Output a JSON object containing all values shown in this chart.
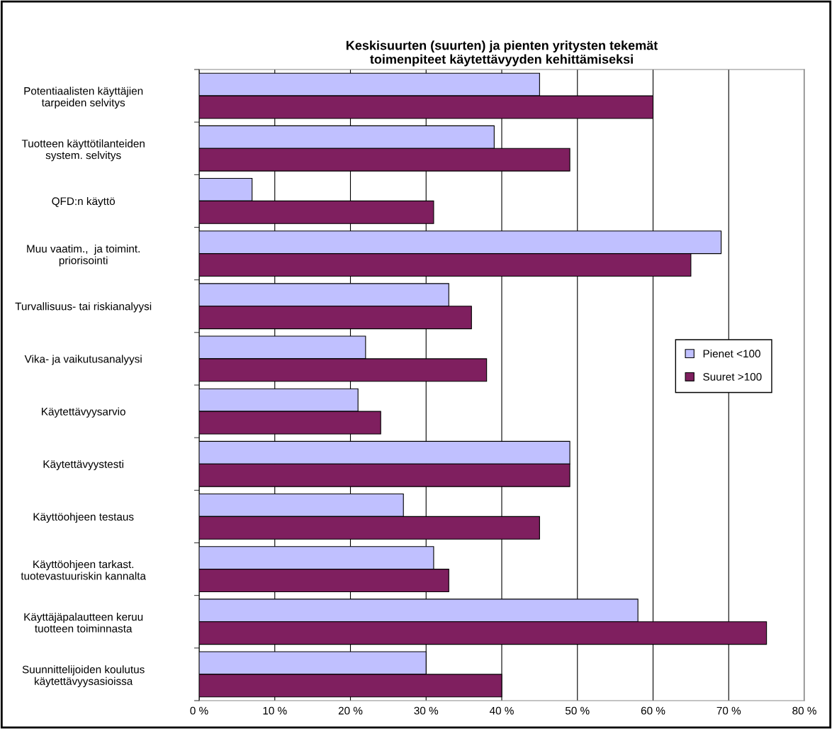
{
  "chart_data": {
    "type": "bar",
    "orientation": "horizontal",
    "title": "Keskisuurten (suurten) ja pienten yritysten tekemät\ntoimenpiteet käytettävyyden kehittämiseksi",
    "categories": [
      "Potentiaalisten käyttäjien\ntarpeiden selvitys",
      "Tuotteen käyttötilanteiden\nsystem. selvitys",
      "QFD:n käyttö",
      "Muu vaatim.,  ja toimint.\npriorisointi",
      "Turvallisuus- tai riskianalyysi",
      "Vika- ja vaikutusanalyysi",
      "Käytettävyysarvio",
      "Käytettävyystesti",
      "Käyttöohjeen testaus",
      "Käyttöohjeen tarkast.\ntuotevastuuriskin kannalta",
      "Käyttäjäpalautteen keruu\ntuotteen toiminnasta",
      "Suunnittelijoiden koulutus\nkäytettävyysasioissa"
    ],
    "series": [
      {
        "name": "Pienet <100",
        "color": "#c0c0ff",
        "values": [
          45,
          39,
          7,
          69,
          33,
          22,
          21,
          49,
          27,
          31,
          58,
          30
        ]
      },
      {
        "name": "Suuret >100",
        "color": "#7f1f5f",
        "values": [
          60,
          49,
          31,
          65,
          36,
          38,
          24,
          49,
          45,
          33,
          75,
          40
        ]
      }
    ],
    "xlim": [
      0,
      80
    ],
    "xticks": [
      {
        "value": 0,
        "label": "0 %"
      },
      {
        "value": 10,
        "label": "10 %"
      },
      {
        "value": 20,
        "label": "20 %"
      },
      {
        "value": 30,
        "label": "30 %"
      },
      {
        "value": 40,
        "label": "40 %"
      },
      {
        "value": 50,
        "label": "50 %"
      },
      {
        "value": 60,
        "label": "60 %"
      },
      {
        "value": 70,
        "label": "70 %"
      },
      {
        "value": 80,
        "label": "80 %"
      }
    ],
    "grid": "x",
    "legend": "right"
  }
}
